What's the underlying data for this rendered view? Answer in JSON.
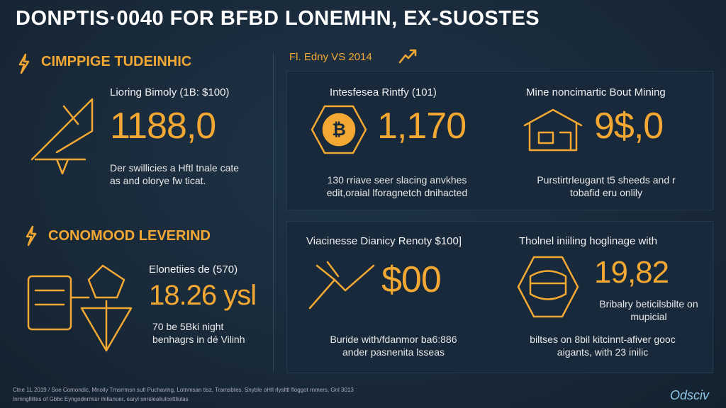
{
  "header": {
    "title": "DONPTIS·0040 FOR BFBD LONEMHN, EX-SUOSTES"
  },
  "left": {
    "sections": [
      {
        "heading": "CIMPPIGE TUDEINHIC",
        "label": "Lioring Bimoly (1B: $100)",
        "value": "1188,0",
        "note": "Der swillicies a Hftl tnale cate as and olorye fw ticat."
      },
      {
        "heading": "CONOMOOD LEVERIND",
        "label": "Elonetiies de (570)",
        "value": "18.26 ysl",
        "note": "70 be 5Bki night benhagrs in dé Vilinh"
      }
    ]
  },
  "right": {
    "heading": "Fl. Edny VS 2014",
    "cards": [
      {
        "label": "Intesfesea Rintfy (101)",
        "value": "1,170",
        "note": "130 rriave seer slacing anvkhes edit,oraial lforagnetch dnihacted"
      },
      {
        "label": "Mine noncimartic Bout Mining",
        "value": "9$,0",
        "note": "Purstirtrleugant t5 sheeds and r tobafid eru onlily"
      },
      {
        "label": "Viacinesse Dianicy Renoty $100]",
        "value": "$00",
        "note": "Buride with/fdanmor ba6:886 ander pasnenita lsseas"
      },
      {
        "label": "Tholnel iniiling hoglinage with",
        "value": "19,82",
        "sub": "Bribalry beticilsbilte on mupicial",
        "note": "biltses on 8bil kitcinnt-afiver gooc aigants, with 23 inilic"
      }
    ]
  },
  "footer": {
    "lines": [
      "Ctne 1L 2019 / Soe Comondic, Mnoily Trnsrrmsn sutl Puchaving, Lotnmsan tisz, Tramsbtes. Snyble oHtl rlyslttl floggot rnmers, Gnl 3013",
      "Inrnnglliltes of Gbbc Eyngodermisr ihillanuer, earyl snrelealiutcettliulas"
    ],
    "logo": "Odsciv"
  }
}
